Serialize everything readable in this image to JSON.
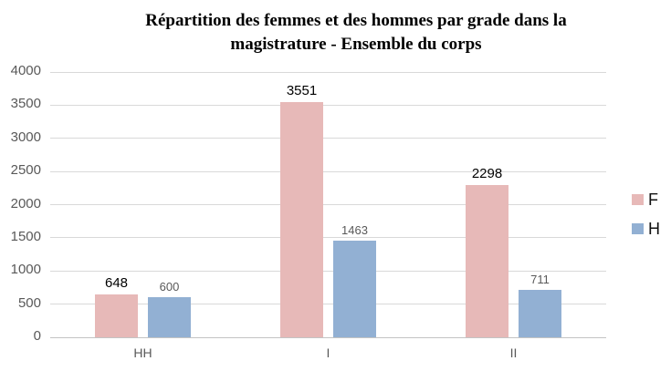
{
  "chart_data": {
    "type": "bar",
    "title": "Répartition des femmes et des hommes par grade dans la magistrature - Ensemble du corps",
    "categories": [
      "HH",
      "I",
      "II"
    ],
    "series": [
      {
        "name": "F",
        "values": [
          648,
          3551,
          2298
        ],
        "color": "#e7b9b8"
      },
      {
        "name": "H",
        "values": [
          600,
          1463,
          711
        ],
        "color": "#92b0d3"
      }
    ],
    "ylim": [
      0,
      4000
    ],
    "yticks": [
      0,
      500,
      1000,
      1500,
      2000,
      2500,
      3000,
      3500,
      4000
    ],
    "xlabel": "",
    "ylabel": "",
    "grid": true,
    "legend_position": "right",
    "colors": {
      "axis_text": "#595959",
      "gridline": "#d9d9d9",
      "value_label_f": "#000000",
      "value_label_h": "#595959",
      "title_text": "#000000"
    }
  }
}
